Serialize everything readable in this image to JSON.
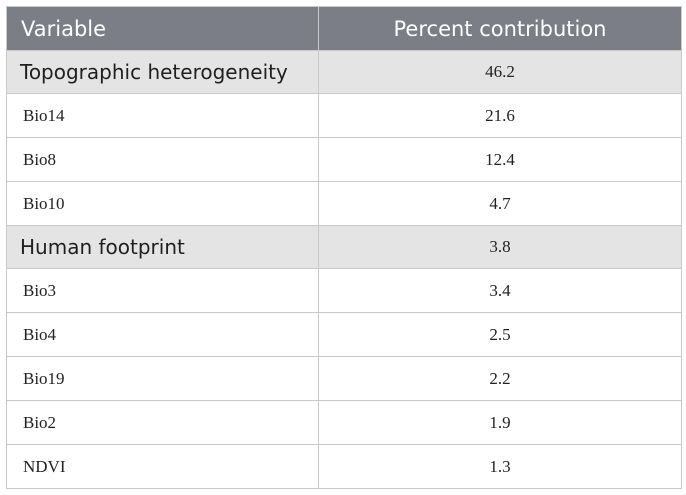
{
  "table": {
    "headers": [
      "Variable",
      "Percent contribution"
    ],
    "rows": [
      {
        "variable": "Topographic heterogeneity",
        "contribution": "46.2",
        "group": true
      },
      {
        "variable": "Bio14",
        "contribution": "21.6",
        "group": false
      },
      {
        "variable": "Bio8",
        "contribution": "12.4",
        "group": false
      },
      {
        "variable": "Bio10",
        "contribution": "4.7",
        "group": false
      },
      {
        "variable": "Human footprint",
        "contribution": "3.8",
        "group": true
      },
      {
        "variable": "Bio3",
        "contribution": "3.4",
        "group": false
      },
      {
        "variable": "Bio4",
        "contribution": "2.5",
        "group": false
      },
      {
        "variable": "Bio19",
        "contribution": "2.2",
        "group": false
      },
      {
        "variable": "Bio2",
        "contribution": "1.9",
        "group": false
      },
      {
        "variable": "NDVI",
        "contribution": "1.3",
        "group": false
      }
    ]
  }
}
